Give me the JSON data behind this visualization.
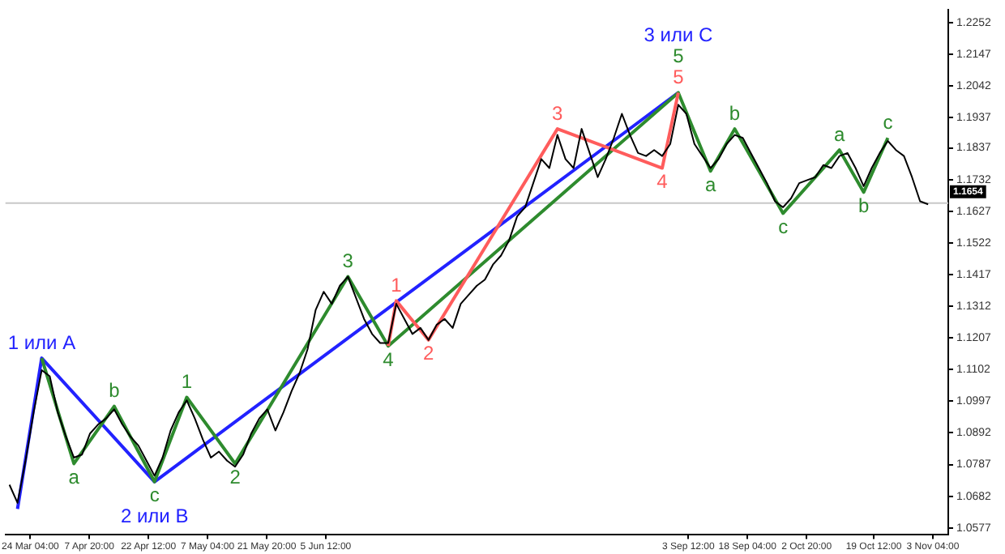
{
  "chart_data": {
    "type": "line",
    "x": [
      "--03-19",
      "--03-21",
      "--03-23",
      "--03-25",
      "--03-27",
      "--03-29",
      "--03-31",
      "--04-02",
      "--04-04",
      "--04-06",
      "--04-08",
      "--04-10",
      "--04-12",
      "--04-14",
      "--04-16",
      "--04-18",
      "--04-20",
      "--04-22",
      "--04-24",
      "--04-26",
      "--04-28",
      "--04-30",
      "--05-02",
      "--05-04",
      "--05-06",
      "--05-08",
      "--05-10",
      "--05-12",
      "--05-14",
      "--05-16",
      "--05-18",
      "--05-20",
      "--05-22",
      "--05-24",
      "--05-26",
      "--05-28",
      "--05-30",
      "--06-01",
      "--06-03",
      "--06-05",
      "--06-07",
      "--06-09",
      "--06-11",
      "--06-13",
      "--06-15",
      "--06-17",
      "--06-19",
      "--06-21",
      "--06-23",
      "--06-25",
      "--06-27",
      "--06-29",
      "--07-01",
      "--07-03",
      "--07-05",
      "--07-07",
      "--07-09",
      "--07-11",
      "--07-13",
      "--07-15",
      "--07-17",
      "--07-19",
      "--07-21",
      "--07-23",
      "--07-25",
      "--07-27",
      "--07-29",
      "--07-31",
      "--08-02",
      "--08-04",
      "--08-06",
      "--08-08",
      "--08-10",
      "--08-12",
      "--08-14",
      "--08-16",
      "--08-18",
      "--08-20",
      "--08-22",
      "--08-24",
      "--08-26",
      "--08-28",
      "--08-30",
      "--09-01",
      "--09-03",
      "--09-05",
      "--09-07",
      "--09-09",
      "--09-11",
      "--09-13",
      "--09-15",
      "--09-17",
      "--09-19",
      "--09-21",
      "--09-23",
      "--09-25",
      "--09-27",
      "--09-29",
      "--10-01",
      "--10-03",
      "--10-05",
      "--10-07",
      "--10-09",
      "--10-11",
      "--10-13",
      "--10-15",
      "--10-17",
      "--10-19",
      "--10-21",
      "--10-23",
      "--10-25",
      "--10-27",
      "--10-29",
      "--10-31",
      "--11-02"
    ],
    "series": [
      {
        "color": "#000000",
        "values": [
          1.072,
          1.066,
          1.08,
          1.096,
          1.11,
          1.108,
          1.096,
          1.088,
          1.081,
          1.082,
          1.089,
          1.092,
          1.094,
          1.097,
          1.092,
          1.088,
          1.085,
          1.08,
          1.075,
          1.081,
          1.09,
          1.096,
          1.1,
          1.094,
          1.087,
          1.081,
          1.083,
          1.08,
          1.078,
          1.082,
          1.089,
          1.094,
          1.097,
          1.09,
          1.096,
          1.103,
          1.109,
          1.117,
          1.13,
          1.136,
          1.132,
          1.138,
          1.141,
          1.134,
          1.127,
          1.122,
          1.119,
          1.119,
          1.132,
          1.127,
          1.122,
          1.124,
          1.12,
          1.125,
          1.127,
          1.124,
          1.132,
          1.135,
          1.138,
          1.14,
          1.145,
          1.148,
          1.153,
          1.161,
          1.164,
          1.172,
          1.18,
          1.177,
          1.188,
          1.18,
          1.177,
          1.19,
          1.182,
          1.174,
          1.18,
          1.187,
          1.195,
          1.188,
          1.182,
          1.181,
          1.183,
          1.181,
          1.185,
          1.198,
          1.195,
          1.185,
          1.181,
          1.177,
          1.18,
          1.185,
          1.188,
          1.187,
          1.182,
          1.177,
          1.172,
          1.166,
          1.164,
          1.167,
          1.172,
          1.173,
          1.174,
          1.178,
          1.177,
          1.181,
          1.182,
          1.177,
          1.171,
          1.177,
          1.182,
          1.186,
          1.183,
          1.181,
          1.174,
          1.166,
          1.165
        ]
      },
      {
        "color": "#ff5c5c",
        "x": [
          "--06-21",
          "--06-23",
          "--07-01",
          "--08-02",
          "--08-28",
          "--09-01"
        ],
        "values": [
          1.118,
          1.133,
          1.12,
          1.19,
          1.177,
          1.202
        ]
      },
      {
        "color": "#2e8b2e",
        "x": [
          "--03-27",
          "--04-04",
          "--04-14",
          "--04-24",
          "--05-02",
          "--05-14",
          "--06-11",
          "--06-21",
          "--09-01",
          "--09-09",
          "--09-15",
          "--09-27",
          "--10-11",
          "--10-17",
          "--10-23"
        ],
        "values": [
          1.114,
          1.079,
          1.098,
          1.073,
          1.101,
          1.079,
          1.141,
          1.118,
          1.202,
          1.176,
          1.19,
          1.162,
          1.183,
          1.169,
          1.187
        ]
      },
      {
        "color": "#2222ff",
        "x": [
          "--03-21",
          "--03-27",
          "--04-24",
          "--09-01"
        ],
        "values": [
          1.064,
          1.114,
          1.073,
          1.202
        ]
      }
    ],
    "annotations": [
      {
        "text": "1",
        "x": "--06-23",
        "y": 1.133
      },
      {
        "text": "2",
        "x": "--07-01",
        "y": 1.12
      },
      {
        "text": "3",
        "x": "--08-02",
        "y": 1.19
      },
      {
        "text": "4",
        "x": "--08-28",
        "y": 1.177
      },
      {
        "text": "5",
        "x": "--09-01",
        "y": 1.202
      },
      {
        "text": "a",
        "x": "--04-04",
        "y": 1.079
      },
      {
        "text": "b",
        "x": "--04-14",
        "y": 1.098
      },
      {
        "text": "c",
        "x": "--04-24",
        "y": 1.073
      },
      {
        "text": "1",
        "x": "--05-02",
        "y": 1.101
      },
      {
        "text": "2",
        "x": "--05-14",
        "y": 1.079
      },
      {
        "text": "3",
        "x": "--06-11",
        "y": 1.141
      },
      {
        "text": "4",
        "x": "--06-21",
        "y": 1.118
      },
      {
        "text": "5",
        "x": "--09-01",
        "y": 1.202
      },
      {
        "text": "a",
        "x": "--09-09",
        "y": 1.176
      },
      {
        "text": "b",
        "x": "--09-15",
        "y": 1.19
      },
      {
        "text": "c",
        "x": "--09-27",
        "y": 1.162
      },
      {
        "text": "a",
        "x": "--10-11",
        "y": 1.183
      },
      {
        "text": "b",
        "x": "--10-17",
        "y": 1.169
      },
      {
        "text": "c",
        "x": "--10-23",
        "y": 1.187
      },
      {
        "text": "1 или A",
        "x": "--03-27",
        "y": 1.114
      },
      {
        "text": "2 или B",
        "x": "--04-24",
        "y": 1.073
      },
      {
        "text": "3 или C",
        "x": "--09-01",
        "y": 1.202
      }
    ],
    "xlim": [
      "--03-18",
      "--11-07"
    ],
    "xticks": [
      {
        "value": "--03-24T04:00",
        "label": "24 Mar 04:00"
      },
      {
        "value": "--04-07T20:00",
        "label": "7 Apr 20:00"
      },
      {
        "value": "--04-22T12:00",
        "label": "22 Apr 12:00"
      },
      {
        "value": "--05-07T04:00",
        "label": "7 May 04:00"
      },
      {
        "value": "--05-21T20:00",
        "label": "21 May 20:00"
      },
      {
        "value": "--06-05T12:00",
        "label": "5 Jun 12:00"
      },
      {
        "value": "--09-03T12:00",
        "label": "3 Sep 12:00"
      },
      {
        "value": "--09-18T04:00",
        "label": "18 Sep 04:00"
      },
      {
        "value": "--10-02T20:00",
        "label": "2 Oct 20:00"
      },
      {
        "value": "--10-19T12:00",
        "label": "19 Oct 12:00"
      },
      {
        "value": "--11-03T04:00",
        "label": "3 Nov 04:00"
      }
    ],
    "ylim": [
      1.0556,
      1.2294
    ],
    "yticks": [
      1.2252,
      1.2147,
      1.2042,
      1.1937,
      1.1837,
      1.1732,
      1.1627,
      1.1522,
      1.1417,
      1.1312,
      1.1207,
      1.1102,
      1.0997,
      1.0892,
      1.0787,
      1.0682,
      1.0577
    ],
    "ref_lines": [
      {
        "axis": "y",
        "value": 1.1654,
        "label": "1.1654",
        "color": "#c8c8c8"
      }
    ],
    "grid": false,
    "legend": false
  }
}
